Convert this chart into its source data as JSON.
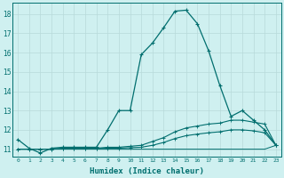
{
  "xlabel": "Humidex (Indice chaleur)",
  "x_values": [
    0,
    1,
    2,
    3,
    4,
    5,
    6,
    7,
    8,
    9,
    10,
    11,
    12,
    13,
    14,
    15,
    16,
    17,
    18,
    19,
    20,
    21,
    22,
    23
  ],
  "line1_y": [
    11.5,
    11.05,
    10.8,
    11.05,
    11.1,
    11.1,
    11.1,
    11.1,
    12.0,
    13.0,
    13.0,
    15.9,
    16.5,
    17.3,
    18.15,
    18.2,
    17.5,
    16.1,
    14.3,
    12.7,
    13.0,
    12.5,
    12.0,
    11.2
  ],
  "line2_y": [
    11.0,
    11.0,
    11.0,
    11.0,
    11.05,
    11.05,
    11.05,
    11.05,
    11.1,
    11.1,
    11.15,
    11.2,
    11.4,
    11.6,
    11.9,
    12.1,
    12.2,
    12.3,
    12.35,
    12.5,
    12.5,
    12.4,
    12.3,
    11.2
  ],
  "line3_y": [
    11.0,
    11.0,
    11.0,
    11.0,
    11.02,
    11.02,
    11.02,
    11.02,
    11.05,
    11.05,
    11.08,
    11.1,
    11.2,
    11.35,
    11.55,
    11.7,
    11.78,
    11.85,
    11.9,
    12.0,
    12.0,
    11.95,
    11.85,
    11.2
  ],
  "line4_y": [
    11.0,
    11.0,
    11.0,
    11.0,
    11.0,
    11.0,
    11.0,
    11.0,
    11.0,
    11.0,
    11.0,
    11.0,
    11.0,
    11.0,
    11.0,
    11.0,
    11.0,
    11.0,
    11.0,
    11.0,
    11.0,
    11.0,
    11.0,
    11.2
  ],
  "line_color": "#006e6e",
  "bg_color": "#cff0f0",
  "grid_color": "#b8dada",
  "ylim": [
    10.6,
    18.6
  ],
  "yticks": [
    11,
    12,
    13,
    14,
    15,
    16,
    17,
    18
  ],
  "xticks": [
    0,
    1,
    2,
    3,
    4,
    5,
    6,
    7,
    8,
    9,
    10,
    11,
    12,
    13,
    14,
    15,
    16,
    17,
    18,
    19,
    20,
    21,
    22,
    23
  ]
}
